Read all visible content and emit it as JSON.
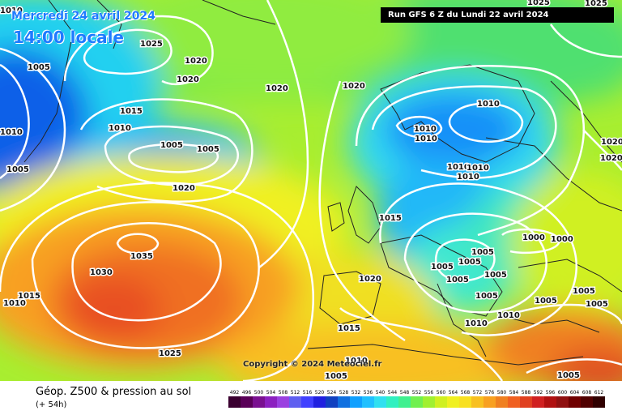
{
  "header": {
    "date": "Mercredi 24 avril 2024",
    "hour": "14:00 locale",
    "run": "Run GFS 6 Z du Lundi 22 avril 2024"
  },
  "copyright": "Copyright © 2024 Meteociel.fr",
  "footer": {
    "title": "Géop. Z500 & pression au sol",
    "step": "(+ 54h)"
  },
  "legend": {
    "values": [
      "492",
      "496",
      "500",
      "504",
      "508",
      "512",
      "516",
      "520",
      "524",
      "528",
      "532",
      "536",
      "540",
      "544",
      "548",
      "552",
      "556",
      "560",
      "564",
      "568",
      "572",
      "576",
      "580",
      "584",
      "588",
      "592",
      "596",
      "600",
      "604",
      "608",
      "612"
    ],
    "colors": [
      "#3a0030",
      "#5a0058",
      "#7a1090",
      "#8c20c0",
      "#9a40e0",
      "#6060f0",
      "#4040ff",
      "#2020e0",
      "#1040c0",
      "#1070e0",
      "#10a0ff",
      "#20c0ff",
      "#30e0f0",
      "#30f0c0",
      "#40f090",
      "#70f050",
      "#a0f030",
      "#d0f020",
      "#f0f020",
      "#f8e020",
      "#f8c020",
      "#f8a020",
      "#f08020",
      "#f06020",
      "#e04020",
      "#d02020",
      "#b01010",
      "#901010",
      "#700000",
      "#500000",
      "#300000"
    ]
  },
  "isobar_labels": [
    {
      "id": "l1",
      "text": "1025"
    },
    {
      "id": "l2",
      "text": "1005"
    },
    {
      "id": "l3",
      "text": "1020"
    },
    {
      "id": "l4",
      "text": "1020"
    },
    {
      "id": "l5",
      "text": "1020"
    },
    {
      "id": "l6",
      "text": "1015"
    },
    {
      "id": "l7",
      "text": "1010"
    },
    {
      "id": "l8",
      "text": "1005"
    },
    {
      "id": "l9",
      "text": "1005"
    },
    {
      "id": "l10",
      "text": "1005"
    },
    {
      "id": "l11",
      "text": "1020"
    },
    {
      "id": "l12",
      "text": "1020"
    },
    {
      "id": "l13",
      "text": "1010"
    },
    {
      "id": "l14",
      "text": "1010"
    },
    {
      "id": "l15",
      "text": "1010"
    },
    {
      "id": "l16",
      "text": "1010"
    },
    {
      "id": "l17",
      "text": "1010"
    },
    {
      "id": "l18",
      "text": "1010"
    },
    {
      "id": "l19",
      "text": "1015"
    },
    {
      "id": "l20",
      "text": "1035"
    },
    {
      "id": "l21",
      "text": "1030"
    },
    {
      "id": "l22",
      "text": "1015"
    },
    {
      "id": "l23",
      "text": "1010"
    },
    {
      "id": "l24",
      "text": "1025"
    },
    {
      "id": "l25",
      "text": "1020"
    },
    {
      "id": "l26",
      "text": "1015"
    },
    {
      "id": "l27",
      "text": "1010"
    },
    {
      "id": "l28",
      "text": "1005"
    },
    {
      "id": "l29",
      "text": "1005"
    },
    {
      "id": "l30",
      "text": "1005"
    },
    {
      "id": "l31",
      "text": "1005"
    },
    {
      "id": "l32",
      "text": "1005"
    },
    {
      "id": "l33",
      "text": "1000"
    },
    {
      "id": "l34",
      "text": "1000"
    },
    {
      "id": "l35",
      "text": "1005"
    },
    {
      "id": "l36",
      "text": "1010"
    },
    {
      "id": "l37",
      "text": "1010"
    },
    {
      "id": "l38",
      "text": "1005"
    },
    {
      "id": "l39",
      "text": "1005"
    },
    {
      "id": "l40",
      "text": "1005"
    },
    {
      "id": "l41",
      "text": "1005"
    },
    {
      "id": "l42",
      "text": "1020"
    },
    {
      "id": "l43",
      "text": "1020"
    },
    {
      "id": "l44",
      "text": "1025"
    },
    {
      "id": "l45",
      "text": "1025"
    },
    {
      "id": "l46",
      "text": "1010"
    },
    {
      "id": "l47",
      "text": "1010"
    },
    {
      "id": "l48",
      "text": "1005"
    }
  ]
}
